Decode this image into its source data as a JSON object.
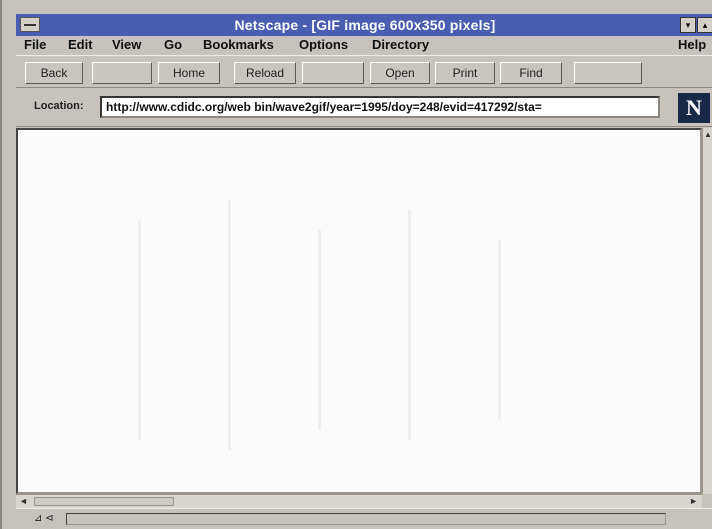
{
  "window": {
    "title": "Netscape - [GIF image 600x350 pixels]"
  },
  "controls": {
    "minimize": "▾",
    "restore": "▴"
  },
  "menu": [
    "File",
    "Edit",
    "View",
    "Go",
    "Bookmarks",
    "Options",
    "Directory",
    "Help"
  ],
  "toolbar": {
    "back": "Back",
    "forward": "",
    "home": "Home",
    "reload": "Reload",
    "images": "",
    "open": "Open",
    "print": "Print",
    "find": "Find",
    "stop": ""
  },
  "location": {
    "label": "Location:",
    "url": "http://www.cdidc.org/web bin/wave2gif/year=1995/doy=248/evid=417292/sta="
  },
  "logo": {
    "letter": "N"
  },
  "status": {
    "security": "⊿ ⊲"
  }
}
